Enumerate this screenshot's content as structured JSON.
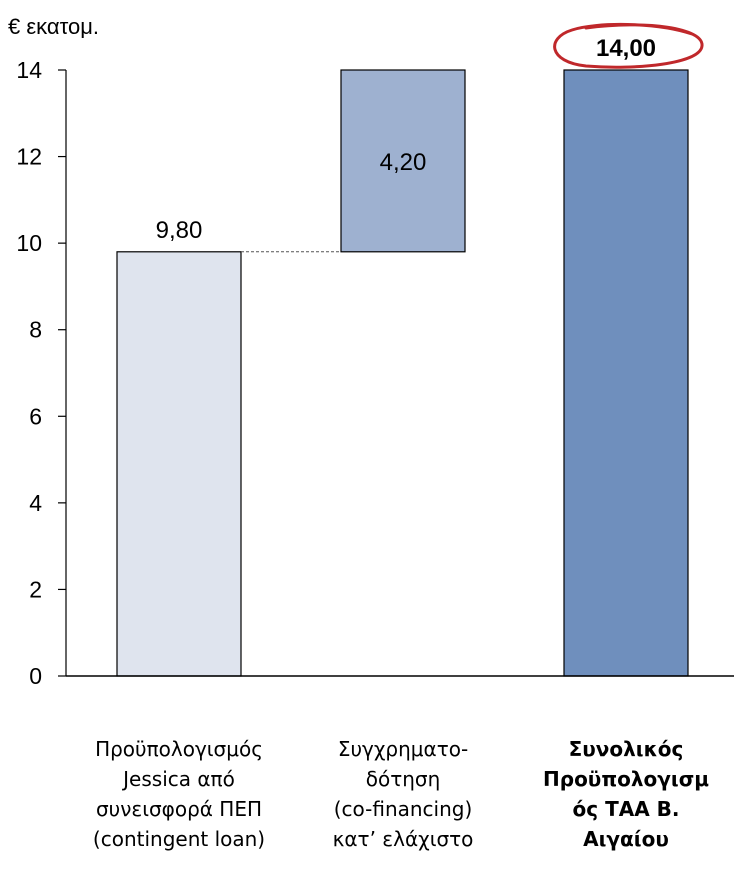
{
  "chart_data": {
    "type": "bar",
    "ylabel": "€ εκατομ.",
    "ylim": [
      0,
      14
    ],
    "yticks": [
      0,
      2,
      4,
      6,
      8,
      10,
      12,
      14
    ],
    "bars": [
      {
        "label": "Προϋπολογισμός Jessica από συνεισφορά ΠΕΠ (contingent loan)",
        "label_lines": [
          "Προϋπολογισμός",
          "Jessica από",
          "συνεισφορά ΠΕΠ",
          "(contingent loan)"
        ],
        "base": 0,
        "value": 9.8,
        "value_label": "9,80",
        "color": "#dfe4ee",
        "bold": false
      },
      {
        "label": "Συγχρηματο-δότηση (co-financing) κατ’ ελάχιστο",
        "label_lines": [
          "Συγχρηματο-",
          "δότηση",
          "(co-financing)",
          "κατ’ ελάχιστο"
        ],
        "base": 9.8,
        "value": 4.2,
        "value_label": "4,20",
        "color": "#9eb1d0",
        "bold": false
      },
      {
        "label": "Συνολικός Προϋπολογισμός ΤΑΑ Β. Αιγαίου",
        "label_lines": [
          "Συνολικός",
          "Προϋπολογισμ",
          "ός ΤΑΑ Β.",
          "Αιγαίου"
        ],
        "base": 0,
        "value": 14.0,
        "value_label": "14,00",
        "color": "#6f8fbd",
        "bold": true
      }
    ],
    "grid": false,
    "highlight_color": "#c0282b"
  }
}
